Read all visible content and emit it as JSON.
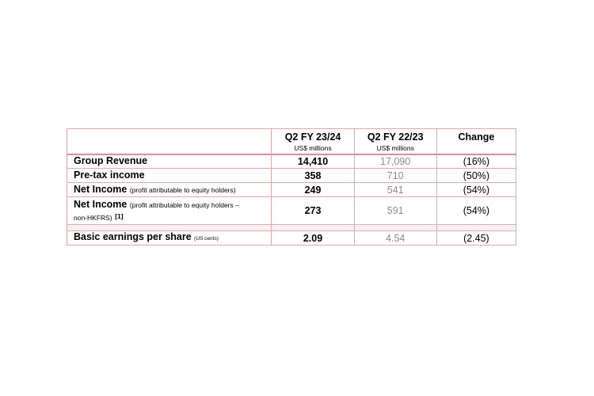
{
  "table": {
    "headers": {
      "current_period": "Q2 FY 23/24",
      "current_unit": "US$ millions",
      "prior_period": "Q2 FY 22/23",
      "prior_unit": "US$ millions",
      "change": "Change"
    },
    "rows": [
      {
        "label": "Group Revenue",
        "note": "",
        "current": "14,410",
        "prior": "17,090",
        "change": "(16%)"
      },
      {
        "label": "Pre-tax income",
        "note": "",
        "current": "358",
        "prior": "710",
        "change": "(50%)"
      },
      {
        "label": "Net Income",
        "note": "(profit attributable to equity holders)",
        "current": "249",
        "prior": "541",
        "change": "(54%)"
      },
      {
        "label": "Net Income",
        "note_line1": "(profit attributable to equity holders –",
        "note_line2": "non-HKFRS)",
        "footnote": "[1]",
        "current": "273",
        "prior": "591",
        "change": "(54%)"
      },
      {
        "label": "Basic earnings per share",
        "note": "(US cents)",
        "current": "2.09",
        "prior": "4.54",
        "change": "(2.45)"
      }
    ]
  },
  "colors": {
    "border": "#e6a6aa",
    "header_rule": "#d98f95",
    "prior_year_text": "#8c8c8c",
    "spacer_fill": "#f2f2f2"
  }
}
